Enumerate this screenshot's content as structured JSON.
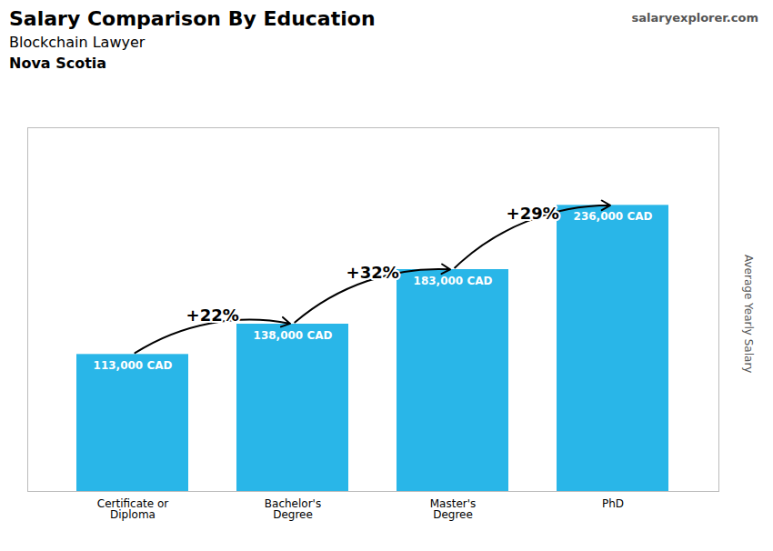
{
  "chart_data": {
    "type": "bar",
    "title": "Salary Comparison By Education",
    "subtitle": [
      "Blockchain Lawyer",
      "Nova Scotia"
    ],
    "ylabel": "Average Yearly Salary",
    "categories": [
      "Certificate or\nDiploma",
      "Bachelor's\nDegree",
      "Master's\nDegree",
      "PhD"
    ],
    "values": [
      113000,
      138000,
      183000,
      236000
    ],
    "value_labels": [
      "113,000 CAD",
      "138,000 CAD",
      "183,000 CAD",
      "236,000 CAD"
    ],
    "data_labels": true,
    "color": "#29b6e8",
    "ylim": [
      0,
      300000
    ],
    "tick_labels": "x",
    "grid": false,
    "annotations": [
      {
        "text": "+22%",
        "from": "Certificate or\nDiploma",
        "to": "Bachelor's\nDegree"
      },
      {
        "text": "+32%",
        "from": "Bachelor's\nDegree",
        "to": "Master's\nDegree"
      },
      {
        "text": "+29%",
        "from": "Master's\nDegree",
        "to": "PhD"
      },
      {
        "text": "salaryexplorer.com"
      }
    ]
  }
}
